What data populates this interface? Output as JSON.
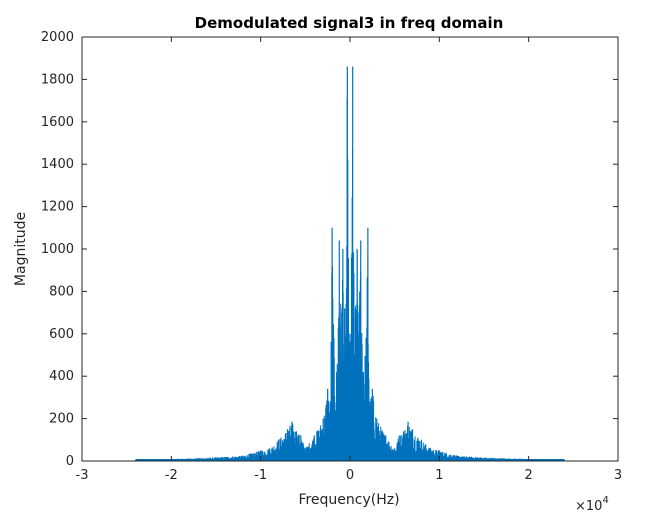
{
  "chart_data": {
    "type": "line",
    "title": "Demodulated signal3 in freq domain",
    "xlabel": "Frequency(Hz)",
    "ylabel": "Magnitude",
    "x_exponent_label": "×10",
    "x_exponent_power": "4",
    "xlim": [
      -3,
      3
    ],
    "ylim": [
      0,
      2000
    ],
    "x_ticks": [
      "-3",
      "-2",
      "-1",
      "0",
      "1",
      "2",
      "3"
    ],
    "y_ticks": [
      "0",
      "200",
      "400",
      "600",
      "800",
      "1000",
      "1200",
      "1400",
      "1600",
      "1800",
      "2000"
    ],
    "x_tick_values": [
      -3,
      -2,
      -1,
      0,
      1,
      2,
      3
    ],
    "y_tick_values": [
      0,
      200,
      400,
      600,
      800,
      1000,
      1200,
      1400,
      1600,
      1800,
      2000
    ],
    "grid": false,
    "line_color": "#0072bd",
    "series": [
      {
        "x": [
          -2.4,
          -1.6,
          -1.2,
          -1.0,
          -0.9,
          -0.8,
          -0.7,
          -0.65,
          -0.6,
          -0.55,
          -0.5,
          -0.4,
          -0.3,
          -0.25,
          -0.22,
          -0.2,
          -0.18,
          -0.15,
          -0.12,
          -0.1,
          -0.08,
          -0.06,
          -0.05,
          -0.03,
          -0.01,
          0.01,
          0.03,
          0.05,
          0.06,
          0.08,
          0.1,
          0.12,
          0.15,
          0.18,
          0.2,
          0.22,
          0.25,
          0.3,
          0.4,
          0.5,
          0.55,
          0.6,
          0.65,
          0.7,
          0.8,
          0.9,
          1.0,
          1.2,
          1.6,
          2.4
        ],
        "y": [
          5,
          15,
          25,
          50,
          60,
          100,
          150,
          185,
          140,
          120,
          60,
          120,
          200,
          340,
          280,
          1100,
          580,
          420,
          1040,
          700,
          1000,
          720,
          500,
          1860,
          600,
          600,
          1860,
          500,
          720,
          1000,
          700,
          1040,
          420,
          580,
          1100,
          280,
          340,
          200,
          120,
          60,
          120,
          140,
          185,
          150,
          100,
          60,
          50,
          25,
          15,
          5
        ]
      }
    ]
  }
}
